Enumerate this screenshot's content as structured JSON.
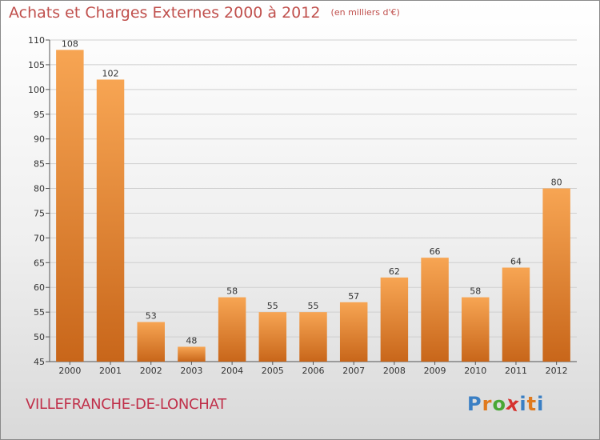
{
  "header": {
    "title": "Achats et Charges Externes 2000 à 2012",
    "unit_note": "(en milliers d'€)"
  },
  "footer": {
    "commune": "VILLEFRANCHE-DE-LONCHAT",
    "logo_text": "Proxiti"
  },
  "colors": {
    "title": "#c0504d",
    "bar_top": "#f7a553",
    "bar_bottom": "#c8661a"
  },
  "chart_data": {
    "type": "bar",
    "title": "Achats et Charges Externes 2000 à 2012",
    "subtitle": "(en milliers d'€)",
    "xlabel": "",
    "ylabel": "",
    "categories": [
      "2000",
      "2001",
      "2002",
      "2003",
      "2004",
      "2005",
      "2006",
      "2007",
      "2008",
      "2009",
      "2010",
      "2011",
      "2012"
    ],
    "values": [
      108,
      102,
      53,
      48,
      58,
      55,
      55,
      57,
      62,
      66,
      58,
      64,
      80
    ],
    "data_labels": [
      "108",
      "102",
      "53",
      "48",
      "58",
      "55",
      "55",
      "57",
      "62",
      "66",
      "58",
      "64",
      "80"
    ],
    "ylim": [
      45,
      110
    ],
    "yticks": [
      45,
      50,
      55,
      60,
      65,
      70,
      75,
      80,
      85,
      90,
      95,
      100,
      105,
      110
    ],
    "grid": true,
    "legend": "none"
  }
}
